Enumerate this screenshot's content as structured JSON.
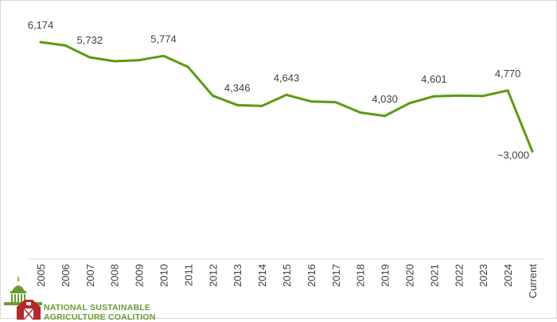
{
  "chart_data": {
    "type": "line",
    "title": "",
    "xlabel": "",
    "ylabel": "",
    "categories": [
      "2005",
      "2006",
      "2007",
      "2008",
      "2009",
      "2010",
      "2011",
      "2012",
      "2013",
      "2014",
      "2015",
      "2016",
      "2017",
      "2018",
      "2019",
      "2020",
      "2021",
      "2022",
      "2023",
      "2024",
      "Current"
    ],
    "series": [
      {
        "values": [
          6174,
          6080,
          5732,
          5620,
          5650,
          5774,
          5450,
          4620,
          4346,
          4320,
          4643,
          4450,
          4430,
          4130,
          4030,
          4400,
          4601,
          4620,
          4610,
          4770,
          3000
        ],
        "color": "#5b9a12"
      }
    ],
    "data_labels": [
      {
        "index": 0,
        "text": "6,174"
      },
      {
        "index": 2,
        "text": "5,732"
      },
      {
        "index": 5,
        "text": "5,774"
      },
      {
        "index": 8,
        "text": "4,346"
      },
      {
        "index": 10,
        "text": "4,643"
      },
      {
        "index": 14,
        "text": "4,030"
      },
      {
        "index": 16,
        "text": "4,601"
      },
      {
        "index": 19,
        "text": "4,770"
      },
      {
        "index": 20,
        "text": "~3,000"
      }
    ],
    "grid": false,
    "legend": "none"
  },
  "logo": {
    "line1": "NATIONAL SUSTAINABLE",
    "line2": "AGRICULTURE COALITION",
    "colors": {
      "text": "#6a9a2f",
      "barn": "#b5282c",
      "capitol": "#6a9a2f"
    }
  }
}
